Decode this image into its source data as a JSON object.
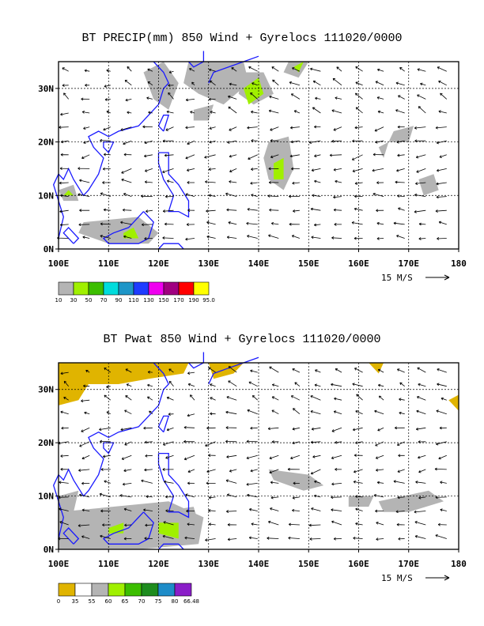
{
  "panels": [
    {
      "title": "BT PRECIP(mm) 850 Wind + Gyrelocs 111020/0000",
      "scale_label": "15 M/S",
      "colorbar_labels": [
        "10",
        "30",
        "50",
        "70",
        "90",
        "110",
        "130",
        "150",
        "170",
        "190",
        "95.0"
      ],
      "colorbar_colors": [
        "#b4b4b4",
        "#a0f000",
        "#3cbe00",
        "#00dcdc",
        "#1e96c8",
        "#1e3cff",
        "#f000f0",
        "#a00080",
        "#ff0000",
        "#ffff00"
      ]
    },
    {
      "title": "BT Pwat 850 Wind + Gyrelocs 111020/0000",
      "scale_label": "15 M/S",
      "colorbar_labels": [
        "0",
        "35",
        "55",
        "60",
        "65",
        "70",
        "75",
        "80",
        "66.48"
      ],
      "colorbar_colors": [
        "#e0b400",
        "#ffffff",
        "#b4b4b4",
        "#a0f000",
        "#3cbe00",
        "#1e8c1e",
        "#1e8cc8",
        "#8a1ec8"
      ]
    }
  ],
  "chart_data": [
    {
      "type": "heatmap",
      "title": "BT PRECIP(mm) 850 Wind + Gyrelocs 111020/0000",
      "variable": "PRECIP (mm)",
      "overlay": "850 hPa wind vectors",
      "xlim": [
        100,
        180
      ],
      "ylim": [
        0,
        35
      ],
      "x_ticks": [
        "100E",
        "110E",
        "120E",
        "130E",
        "140E",
        "150E",
        "160E",
        "170E",
        "180"
      ],
      "y_ticks": [
        "0N",
        "10N",
        "20N",
        "30N"
      ],
      "grid": true,
      "colorbar_levels": [
        10,
        30,
        50,
        70,
        90,
        110,
        130,
        150,
        170,
        190
      ],
      "colorbar_max_label": "95.0",
      "reference_vector": "15 M/S"
    },
    {
      "type": "heatmap",
      "title": "BT Pwat 850 Wind + Gyrelocs 111020/0000",
      "variable": "Pwat",
      "overlay": "850 hPa wind vectors",
      "xlim": [
        100,
        180
      ],
      "ylim": [
        0,
        35
      ],
      "x_ticks": [
        "100E",
        "110E",
        "120E",
        "130E",
        "140E",
        "150E",
        "160E",
        "170E",
        "180"
      ],
      "y_ticks": [
        "0N",
        "10N",
        "20N",
        "30N"
      ],
      "grid": true,
      "colorbar_levels": [
        0,
        35,
        55,
        60,
        65,
        70,
        75,
        80
      ],
      "colorbar_max_label": "66.48",
      "reference_vector": "15 M/S"
    }
  ]
}
